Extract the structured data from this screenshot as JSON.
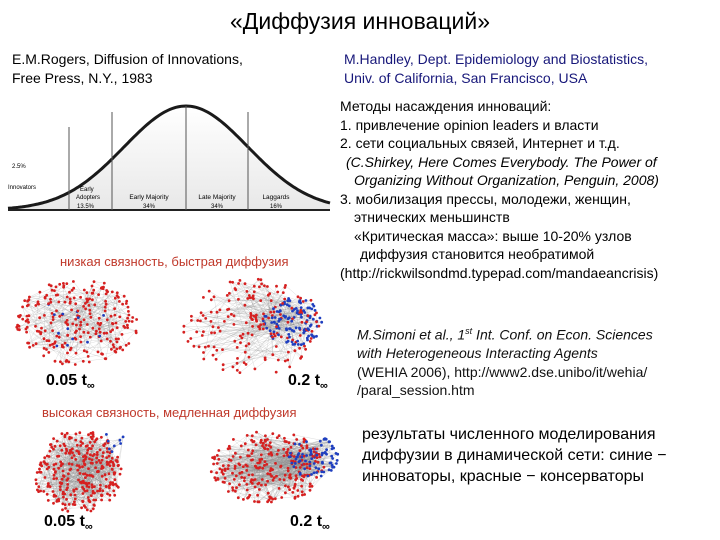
{
  "title": "«Диффузия инноваций»",
  "ref_left": [
    "E.M.Rogers, Diffusion of Innovations,",
    "Free Press, N.Y., 1983"
  ],
  "ref_right": [
    "M.Handley, Dept. Epidemiology and Biostatistics,",
    "Univ. of California, San Francisco, USA"
  ],
  "methods": [
    "Методы насаждения инноваций:",
    "1. привлечение opinion leaders и власти",
    "2. сети социальных связей, Интернет и т.д.",
    "(C.Shirkey, Here Comes Everybody. The Power of",
    "Organizing Without Organization, Penguin, 2008)",
    "3. мобилизация прессы, молодежи, женщин,",
    "этнических меньшинств",
    "«Критическая масса»: выше 10-20% узлов",
    "диффузия становится необратимой",
    "(http://rickwilsondmd.typepad.com/mandaeancrisis)"
  ],
  "simoni": {
    "prefix": "M.Simoni et al., 1",
    "sup": "st",
    "rest": " Int. Conf. on Econ. Sciences",
    "lines": [
      "with Heterogeneous Interacting Agents",
      "(WEHIA 2006), http://www2.dse.unibo/it/wehia/",
      "/paral_session.htm"
    ]
  },
  "results": [
    "результаты численного моделирования",
    "диффузии в динамической сети: синие −",
    "инноваторы, красные − консерваторы"
  ],
  "curve": {
    "innovators_pct": "2.5%",
    "innovators": "Innovators",
    "early_adopters": "Early",
    "early_adopters_2": "Adopters",
    "early_adopters_pct": "13.5%",
    "early_majority": "Early Majority",
    "early_majority_pct": "34%",
    "late_majority": "Late Majority",
    "late_majority_pct": "34%",
    "laggards": "Laggards",
    "laggards_pct": "16%"
  },
  "network_top": {
    "caption": "низкая связность, быстрая диффузия",
    "t1": "0.05 t",
    "t2": "0.2 t",
    "sub": "∞"
  },
  "network_bottom": {
    "caption": "высокая связность, медленная диффузия",
    "t1": "0.05 t",
    "t2": "0.2 t",
    "sub": "∞"
  },
  "colors": {
    "red_nodes": "#d62020",
    "blue_nodes": "#1f3fbf",
    "edges": "#888888",
    "accent_red": "#c0392b"
  }
}
